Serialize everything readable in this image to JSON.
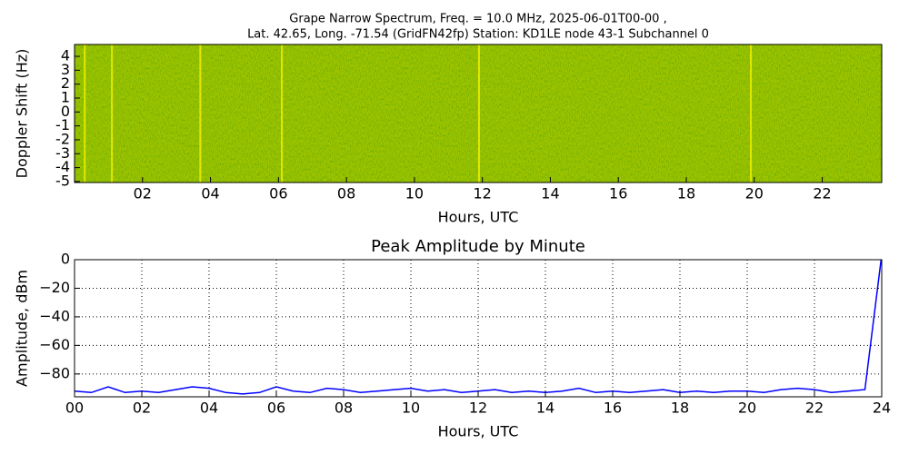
{
  "chart_data": [
    {
      "type": "spectrogram",
      "title": [
        "Grape Narrow Spectrum, Freq. = 10.0 MHz, 2025-06-01T00-00 ,",
        "Lat.  42.65, Long. -71.54 (GridFN42fp) Station: KD1LE node 43-1 Subchannel 0"
      ],
      "xlabel": "Hours, UTC",
      "ylabel": "Doppler Shift (Hz)",
      "xlim": [
        0,
        23.75
      ],
      "ylim": [
        -5.07,
        4.85
      ],
      "xticks": [
        {
          "value": 2,
          "label": "02"
        },
        {
          "value": 4,
          "label": "04"
        },
        {
          "value": 6,
          "label": "06"
        },
        {
          "value": 8,
          "label": "08"
        },
        10,
        12,
        14,
        16,
        18,
        20,
        22
      ],
      "yticks": [
        4,
        3,
        2,
        1,
        0,
        -1,
        -2,
        -3,
        -4,
        -5
      ],
      "color": "#9cc400",
      "line_color": "#f0f000",
      "bright_lines": [
        0.3,
        1.1,
        3.7,
        6.1,
        11.9,
        19.9
      ],
      "grid": false
    },
    {
      "type": "line",
      "title": "Peak Amplitude by Minute",
      "xlabel": "Hours, UTC",
      "ylabel": "Amplitude, dBm",
      "xlim": [
        0,
        24
      ],
      "ylim": [
        -96,
        0
      ],
      "xticks": [
        {
          "value": 0,
          "label": "00"
        },
        {
          "value": 2,
          "label": "02"
        },
        {
          "value": 4,
          "label": "04"
        },
        {
          "value": 6,
          "label": "06"
        },
        {
          "value": 8,
          "label": "08"
        },
        10,
        12,
        14,
        16,
        18,
        20,
        22,
        24
      ],
      "yticks": [
        0,
        {
          "value": -20,
          "label": "−20"
        },
        {
          "value": -40,
          "label": "−40"
        },
        {
          "value": -60,
          "label": "−60"
        },
        {
          "value": -80,
          "label": "−80"
        }
      ],
      "color": "#0000ff",
      "grid": true,
      "x": [
        0,
        0.5,
        1,
        1.5,
        2,
        2.5,
        3,
        3.5,
        4,
        4.5,
        5,
        5.5,
        6,
        6.5,
        7,
        7.5,
        8,
        8.5,
        9,
        9.5,
        10,
        10.5,
        11,
        11.5,
        12,
        12.5,
        13,
        13.5,
        14,
        14.5,
        15,
        15.5,
        16,
        16.5,
        17,
        17.5,
        18,
        18.5,
        19,
        19.5,
        20,
        20.5,
        21,
        21.5,
        22,
        22.5,
        23,
        23.5,
        23.98
      ],
      "values": [
        -92,
        -93,
        -89,
        -93,
        -92,
        -93,
        -91,
        -89,
        -90,
        -93,
        -94,
        -93,
        -89,
        -92,
        -93,
        -90,
        -91,
        -93,
        -92,
        -91,
        -90,
        -92,
        -91,
        -93,
        -92,
        -91,
        -93,
        -92,
        -93,
        -92,
        -90,
        -93,
        -92,
        -93,
        -92,
        -91,
        -93,
        -92,
        -93,
        -92,
        -92,
        -93,
        -91,
        -90,
        -91,
        -93,
        -92,
        -91,
        0
      ]
    }
  ]
}
